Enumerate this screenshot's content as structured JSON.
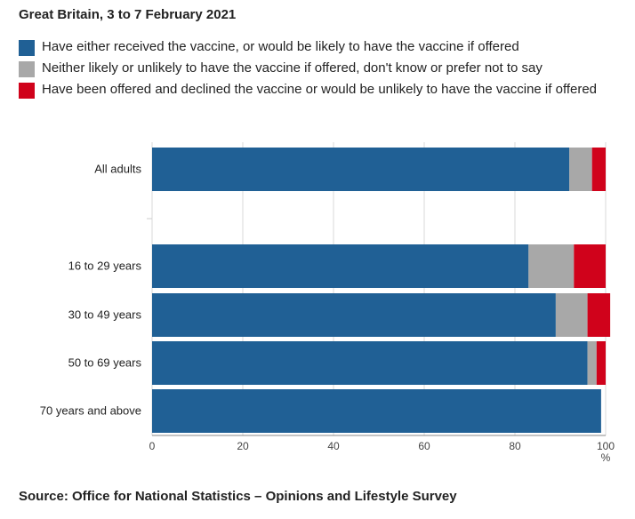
{
  "subtitle": "Great Britain, 3 to 7 February 2021",
  "legend": [
    {
      "label": "Have either received the vaccine, or would be likely to have the vaccine if offered",
      "color": "#206095"
    },
    {
      "label": "Neither likely or unlikely to have the vaccine if offered, don't know or prefer not to say",
      "color": "#a8a8a8"
    },
    {
      "label": "Have been offered and declined the vaccine or would be unlikely to have the vaccine if offered",
      "color": "#d0021b"
    }
  ],
  "source": "Source: Office for National Statistics – Opinions and Lifestyle Survey",
  "chart_data": {
    "type": "bar",
    "orientation": "horizontal",
    "stacked": true,
    "categories": [
      "All adults",
      "16 to 29 years",
      "30 to 49 years",
      "50 to 69 years",
      "70 years and above"
    ],
    "series": [
      {
        "name": "Have either received the vaccine, or would be likely to have the vaccine if offered",
        "color": "#206095",
        "values": [
          92,
          83,
          89,
          96,
          99
        ]
      },
      {
        "name": "Neither likely or unlikely to have the vaccine if offered, don't know or prefer not to say",
        "color": "#a8a8a8",
        "values": [
          5,
          10,
          7,
          2,
          0
        ]
      },
      {
        "name": "Have been offered and declined the vaccine or would be unlikely to have the vaccine if offered",
        "color": "#d0021b",
        "values": [
          3,
          7,
          5,
          2,
          0
        ]
      }
    ],
    "xlim": [
      0,
      100
    ],
    "xticks": [
      "0",
      "20",
      "40",
      "60",
      "80",
      "100"
    ],
    "xunit": "%",
    "grid": true
  }
}
